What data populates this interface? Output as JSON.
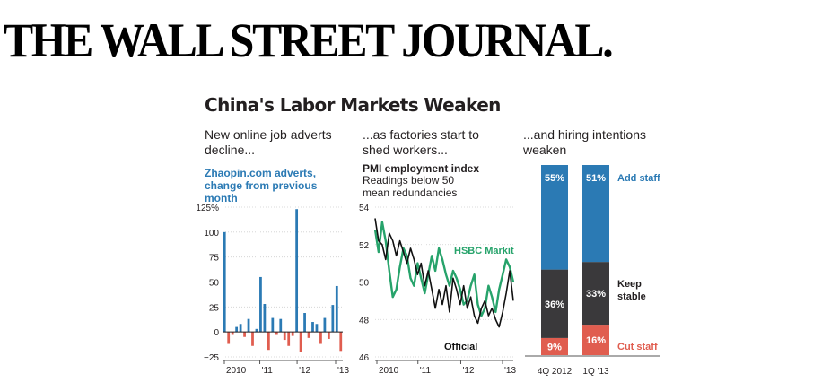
{
  "masthead": "THE WALL STREET JOURNAL.",
  "headline": "China's Labor Markets Weaken",
  "subheads": [
    "New online job adverts decline...",
    "...as factories start to shed workers...",
    "...and hiring intentions weaken"
  ],
  "colors": {
    "blue": "#2b7ab4",
    "red": "#e05d4f",
    "green": "#27a36b",
    "dark": "#3a393b",
    "axis": "#555555"
  },
  "chart_data": [
    {
      "type": "bar",
      "title": "Zhaopin.com adverts, change from previous month",
      "y_tick_labels": [
        "125%",
        "100",
        "75",
        "50",
        "25",
        "0",
        "−25"
      ],
      "ylim": [
        -25,
        125
      ],
      "x_tick_labels": [
        "2010",
        "'11",
        "'12",
        "'13"
      ],
      "values": [
        100,
        -12,
        -3,
        5,
        8,
        -5,
        13,
        -14,
        3,
        55,
        28,
        -18,
        14,
        -3,
        13,
        -8,
        -14,
        -4,
        123,
        -20,
        19,
        -6,
        10,
        8,
        -12,
        14,
        -7,
        27,
        46,
        -19
      ]
    },
    {
      "type": "line",
      "title": "PMI employment index",
      "subtitle": "Readings below 50 mean redundancies",
      "y_tick_labels": [
        "54",
        "52",
        "50",
        "48",
        "46"
      ],
      "ylim": [
        46,
        54
      ],
      "x_tick_labels": [
        "2010",
        "'11",
        "'12",
        "'13"
      ],
      "reference_line": 50,
      "series": [
        {
          "name": "HSBC Markit",
          "values": [
            52.8,
            51.6,
            53.2,
            52.2,
            50.6,
            49.2,
            49.6,
            50.8,
            51.8,
            51.4,
            50.2,
            49.8,
            51.0,
            50.2,
            49.4,
            50.4,
            51.4,
            50.6,
            51.8,
            51.2,
            50.4,
            49.8,
            50.6,
            50.2,
            49.6,
            48.8,
            49.0,
            49.8,
            50.4,
            48.8,
            48.2,
            48.6,
            49.8,
            49.2,
            48.4,
            49.6,
            50.4,
            51.2,
            50.8,
            50.0
          ]
        },
        {
          "name": "Official",
          "values": [
            53.4,
            52.2,
            52.0,
            51.2,
            52.6,
            52.2,
            51.4,
            52.2,
            51.6,
            51.0,
            51.8,
            51.2,
            50.4,
            51.0,
            49.8,
            50.6,
            49.6,
            48.6,
            49.6,
            48.8,
            49.8,
            48.4,
            50.2,
            49.6,
            48.8,
            49.8,
            48.6,
            49.2,
            48.2,
            47.8,
            48.6,
            49.0,
            48.2,
            48.6,
            48.0,
            47.6,
            48.4,
            49.4,
            50.6,
            49.0
          ]
        }
      ]
    },
    {
      "type": "bar",
      "stacked": true,
      "categories": [
        "4Q 2012",
        "1Q '13"
      ],
      "series": [
        {
          "name": "Add staff",
          "values": [
            55,
            51
          ]
        },
        {
          "name": "Keep stable",
          "values": [
            36,
            33
          ]
        },
        {
          "name": "Cut staff",
          "values": [
            9,
            16
          ]
        }
      ],
      "value_labels": [
        [
          "55%",
          "36%",
          "9%"
        ],
        [
          "51%",
          "33%",
          "16%"
        ]
      ],
      "ylim": [
        0,
        100
      ]
    }
  ]
}
